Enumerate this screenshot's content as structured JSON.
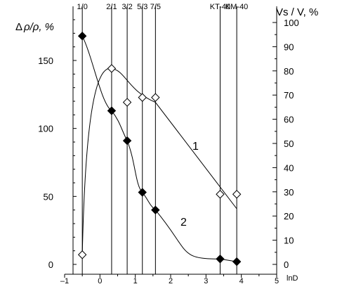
{
  "chart_data": {
    "type": "scatter",
    "left_axis": {
      "label_symbol": "Δ",
      "label_text": "ρ/ρ, %",
      "ticks": [
        "0",
        "50",
        "100",
        "150"
      ],
      "ylim": [
        0,
        185
      ]
    },
    "right_axis": {
      "label_text": "Vs / V, %",
      "ticks": [
        "0",
        "10",
        "20",
        "30",
        "40",
        "50",
        "60",
        "70",
        "80",
        "90",
        "100"
      ],
      "ylim": [
        0,
        105
      ]
    },
    "x_axis": {
      "label": "lnD",
      "ticks": [
        "–1",
        "0",
        "1",
        "2",
        "3",
        "4",
        "5"
      ],
      "xlim": [
        -1,
        5
      ]
    },
    "vertical_lines": [
      {
        "label": "1/0",
        "x": -0.5
      },
      {
        "label": "2/1",
        "x": 0.33
      },
      {
        "label": "3/2",
        "x": 0.77
      },
      {
        "label": "5/3",
        "x": 1.2
      },
      {
        "label": "7/5",
        "x": 1.57
      },
      {
        "label": "KT-40",
        "x": 3.4
      },
      {
        "label": "KM-40",
        "x": 3.87
      }
    ],
    "series": [
      {
        "name": "2",
        "axis": "left",
        "marker": "filled-diamond",
        "x": [
          -0.5,
          0.33,
          0.77,
          1.2,
          1.57,
          3.4,
          3.87
        ],
        "y": [
          168,
          113,
          91,
          53,
          40,
          4,
          2
        ]
      },
      {
        "name": "1",
        "axis": "right",
        "marker": "open-diamond",
        "x": [
          -0.5,
          0.33,
          0.77,
          1.2,
          1.57,
          3.4,
          3.87
        ],
        "y": [
          4,
          81,
          67,
          69,
          69,
          29,
          29
        ]
      }
    ],
    "grid": false,
    "legend": "none"
  }
}
